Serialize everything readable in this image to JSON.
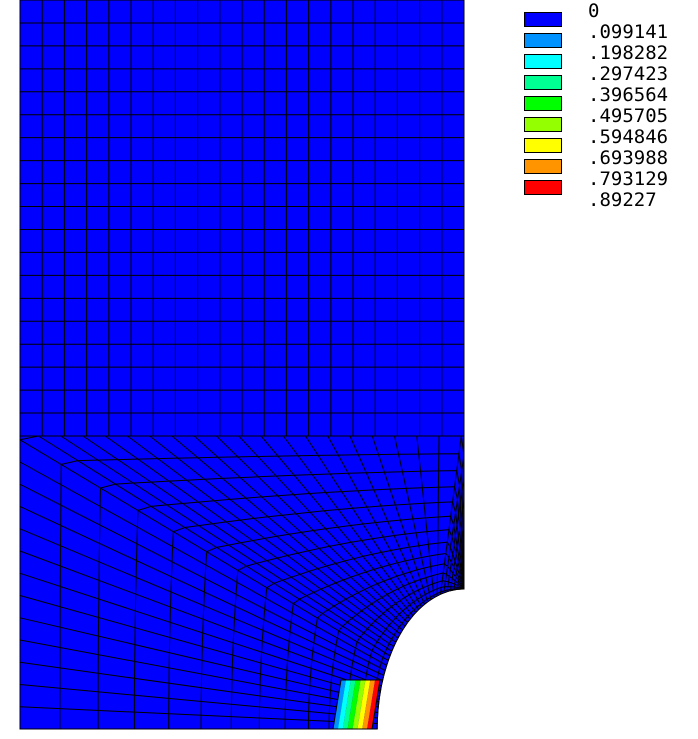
{
  "legend": {
    "labels": [
      "0",
      ".099141",
      ".198282",
      ".297423",
      ".396564",
      ".495705",
      ".594846",
      ".693988",
      ".793129",
      ".89227"
    ],
    "colors": [
      "#0000ff",
      "#0093ff",
      "#00ffff",
      "#00ff93",
      "#00ff00",
      "#93ff00",
      "#ffff00",
      "#ff9300",
      "#ff0000"
    ]
  },
  "mesh": {
    "fill_color": "#0000ff",
    "line_color": "#000000",
    "hole_color": "#ffffff"
  }
}
